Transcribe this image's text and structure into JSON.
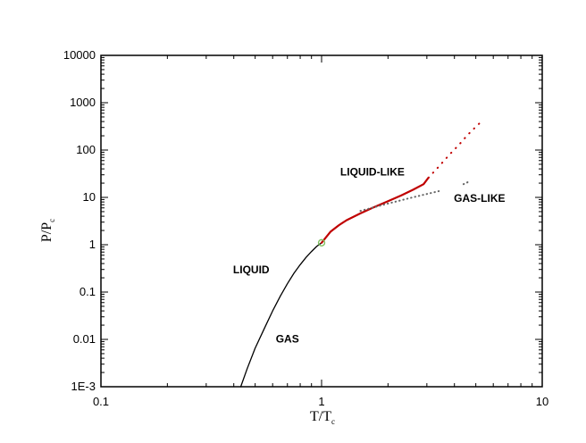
{
  "chart_data": {
    "type": "line",
    "x_scale": "log",
    "y_scale": "log",
    "xlim": [
      0.1,
      10
    ],
    "ylim": [
      0.001,
      10000
    ],
    "x_ticks": [
      {
        "value": 0.1,
        "label": "0.1"
      },
      {
        "value": 1,
        "label": "1"
      },
      {
        "value": 10,
        "label": "10"
      }
    ],
    "y_ticks": [
      {
        "value": 0.001,
        "label": "1E-3"
      },
      {
        "value": 0.01,
        "label": "0.01"
      },
      {
        "value": 0.1,
        "label": "0.1"
      },
      {
        "value": 1,
        "label": "1"
      },
      {
        "value": 10,
        "label": "10"
      },
      {
        "value": 100,
        "label": "100"
      },
      {
        "value": 1000,
        "label": "1000"
      },
      {
        "value": 10000,
        "label": "10000"
      }
    ],
    "xlabel": {
      "main": "T/T",
      "sub": "c"
    },
    "ylabel": {
      "main": "P/P",
      "sub": "c"
    },
    "grid": false,
    "regions": [
      {
        "label": "LIQUID",
        "x": 0.48,
        "y": 0.25
      },
      {
        "label": "GAS",
        "x": 0.7,
        "y": 0.0085
      },
      {
        "label": "LIQUID-LIKE",
        "x": 1.7,
        "y": 29
      },
      {
        "label": "GAS-LIKE",
        "x": 5.2,
        "y": 8
      }
    ],
    "series": [
      {
        "style": "solid",
        "color": "#000000",
        "x": [
          0.43,
          0.46,
          0.5,
          0.55,
          0.6,
          0.65,
          0.7,
          0.75,
          0.8,
          0.85,
          0.9,
          0.95,
          1.0
        ],
        "y": [
          0.001,
          0.0024,
          0.0065,
          0.017,
          0.04,
          0.082,
          0.15,
          0.25,
          0.38,
          0.54,
          0.72,
          0.92,
          1.1
        ]
      },
      {
        "style": "solid",
        "color": "#c00000",
        "x": [
          1.0,
          1.1,
          1.2,
          1.3,
          1.5,
          1.7,
          2.0,
          2.3,
          2.6,
          2.9,
          3.05
        ],
        "y": [
          1.1,
          1.9,
          2.6,
          3.3,
          4.6,
          6.0,
          8.3,
          11.0,
          14.5,
          19.0,
          26
        ]
      },
      {
        "style": "dotted",
        "color": "#c00000",
        "x": [
          3.05,
          3.4,
          3.8,
          4.2,
          4.6,
          5.0,
          5.3
        ],
        "y": [
          26,
          45,
          80,
          130,
          210,
          310,
          400
        ]
      },
      {
        "style": "dotted",
        "color": "#666666",
        "x": [
          1.5,
          2.0,
          2.5,
          3.0,
          3.5
        ],
        "y": [
          5.2,
          7.4,
          9.6,
          11.8,
          14.0
        ]
      },
      {
        "style": "dotted",
        "color": "#666666",
        "x": [
          4.4,
          4.7
        ],
        "y": [
          19,
          22
        ]
      }
    ],
    "critical_point": {
      "x": 1.0,
      "y": 1.1,
      "color": "#7fbf5f"
    }
  }
}
